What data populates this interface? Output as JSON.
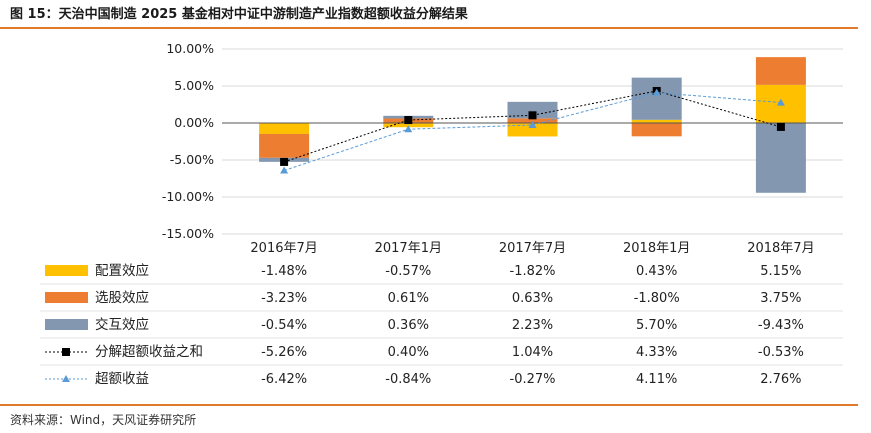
{
  "title": "图 15：天治中国制造 2025 基金相对中证中游制造产业指数超额收益分解结果",
  "source": "资料来源：Wind，天风证券研究所",
  "colors": {
    "accent_rule": "#e07a2a",
    "allocation": "#ffc000",
    "selection": "#ed7d31",
    "interaction": "#8497b0",
    "sum_line": "#000000",
    "excess_line": "#5b9bd5"
  },
  "chart_data": {
    "type": "bar",
    "stacked": true,
    "categories": [
      "2016年7月",
      "2017年1月",
      "2017年7月",
      "2018年1月",
      "2018年7月"
    ],
    "ylim": [
      -15,
      10
    ],
    "yticks": [
      -15,
      -10,
      -5,
      0,
      5,
      10
    ],
    "ytick_labels": [
      "-15.00%",
      "-10.00%",
      "-5.00%",
      "0.00%",
      "5.00%",
      "10.00%"
    ],
    "series": [
      {
        "name": "配置效应",
        "kind": "bar",
        "color": "#ffc000",
        "values": [
          -1.48,
          -0.57,
          -1.82,
          0.43,
          5.15
        ],
        "labels": [
          "-1.48%",
          "-0.57%",
          "-1.82%",
          "0.43%",
          "5.15%"
        ]
      },
      {
        "name": "选股效应",
        "kind": "bar",
        "color": "#ed7d31",
        "values": [
          -3.23,
          0.61,
          0.63,
          -1.8,
          3.75
        ],
        "labels": [
          "-3.23%",
          "0.61%",
          "0.63%",
          "-1.80%",
          "3.75%"
        ]
      },
      {
        "name": "交互效应",
        "kind": "bar",
        "color": "#8497b0",
        "values": [
          -0.54,
          0.36,
          2.23,
          5.7,
          -9.43
        ],
        "labels": [
          "-0.54%",
          "0.36%",
          "2.23%",
          "5.70%",
          "-9.43%"
        ]
      },
      {
        "name": "分解超额收益之和",
        "kind": "line",
        "marker": "square",
        "color": "#000000",
        "values": [
          -5.26,
          0.4,
          1.04,
          4.33,
          -0.53
        ],
        "labels": [
          "-5.26%",
          "0.40%",
          "1.04%",
          "4.33%",
          "-0.53%"
        ]
      },
      {
        "name": "超额收益",
        "kind": "line",
        "marker": "triangle",
        "color": "#5b9bd5",
        "values": [
          -6.42,
          -0.84,
          -0.27,
          4.11,
          2.76
        ],
        "labels": [
          "-6.42%",
          "-0.84%",
          "-0.27%",
          "4.11%",
          "2.76%"
        ]
      }
    ]
  }
}
